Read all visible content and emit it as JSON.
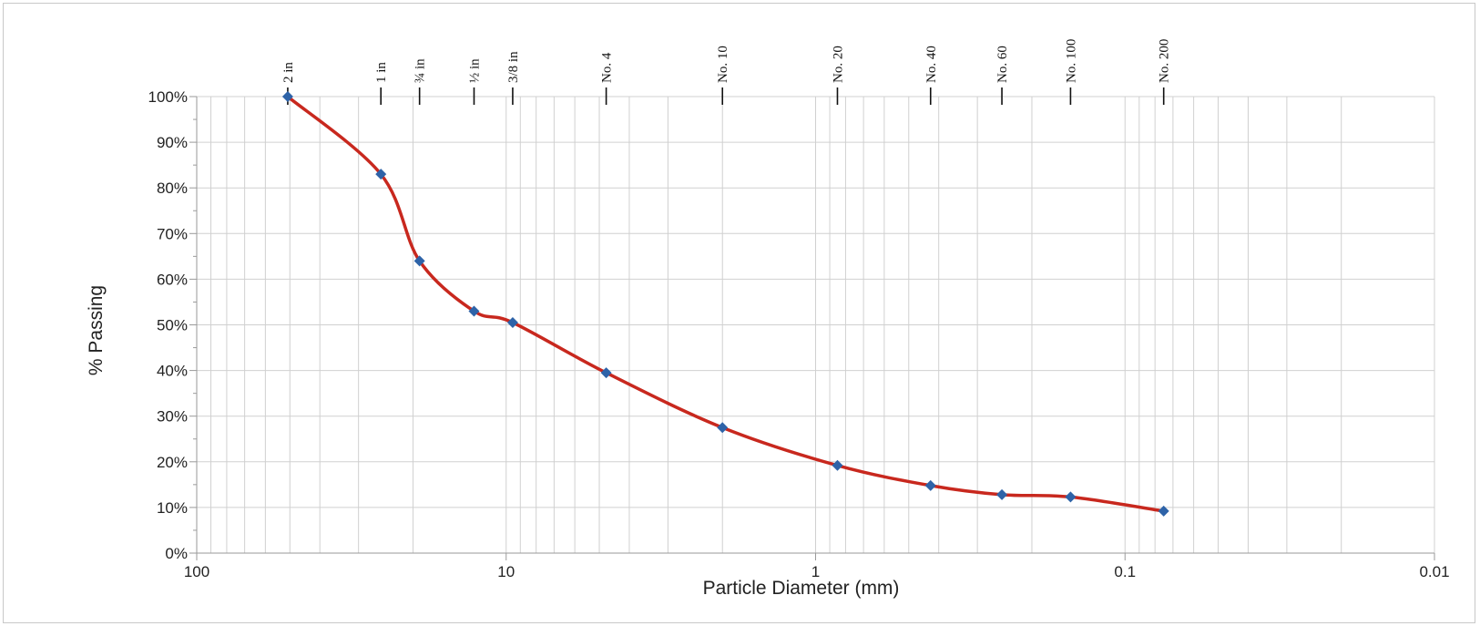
{
  "chart_data": {
    "type": "line",
    "xlabel": "Particle Diameter (mm)",
    "ylabel": "% Passing",
    "x_scale": "log",
    "x_reversed": true,
    "xlim": [
      100,
      0.01
    ],
    "ylim": [
      0,
      100
    ],
    "grid": true,
    "x_ticks": [
      {
        "value": 100,
        "label": "100"
      },
      {
        "value": 10,
        "label": "10"
      },
      {
        "value": 1,
        "label": "1"
      },
      {
        "value": 0.1,
        "label": "0.1"
      },
      {
        "value": 0.01,
        "label": "0.01"
      }
    ],
    "y_ticks": [
      {
        "value": 0,
        "label": "0%"
      },
      {
        "value": 10,
        "label": "10%"
      },
      {
        "value": 20,
        "label": "20%"
      },
      {
        "value": 30,
        "label": "30%"
      },
      {
        "value": 40,
        "label": "40%"
      },
      {
        "value": 50,
        "label": "50%"
      },
      {
        "value": 60,
        "label": "60%"
      },
      {
        "value": 70,
        "label": "70%"
      },
      {
        "value": 80,
        "label": "80%"
      },
      {
        "value": 90,
        "label": "90%"
      },
      {
        "value": 100,
        "label": "100%"
      }
    ],
    "sieves": [
      {
        "label": "2 in",
        "size_mm": 50.8
      },
      {
        "label": "1 in",
        "size_mm": 25.4
      },
      {
        "label": "¾ in",
        "size_mm": 19.05
      },
      {
        "label": "½ in",
        "size_mm": 12.7
      },
      {
        "label": "3/8 in",
        "size_mm": 9.525
      },
      {
        "label": "No. 4",
        "size_mm": 4.75
      },
      {
        "label": "No. 10",
        "size_mm": 2.0
      },
      {
        "label": "No. 20",
        "size_mm": 0.85
      },
      {
        "label": "No. 40",
        "size_mm": 0.425
      },
      {
        "label": "No. 60",
        "size_mm": 0.25
      },
      {
        "label": "No. 100",
        "size_mm": 0.15
      },
      {
        "label": "No. 200",
        "size_mm": 0.075
      }
    ],
    "series": [
      {
        "x": [
          50.8,
          25.4,
          19.05,
          12.7,
          9.525,
          4.75,
          2.0,
          0.85,
          0.425,
          0.25,
          0.15,
          0.075
        ],
        "y": [
          100,
          83,
          64,
          53,
          50.5,
          39.5,
          27.5,
          19.2,
          14.8,
          12.8,
          12.3,
          9.2
        ]
      }
    ],
    "colors": {
      "line": "#c8281e",
      "marker": "#2e63a8",
      "grid": "#d0d0d0",
      "axis": "#9a9a9a"
    }
  }
}
